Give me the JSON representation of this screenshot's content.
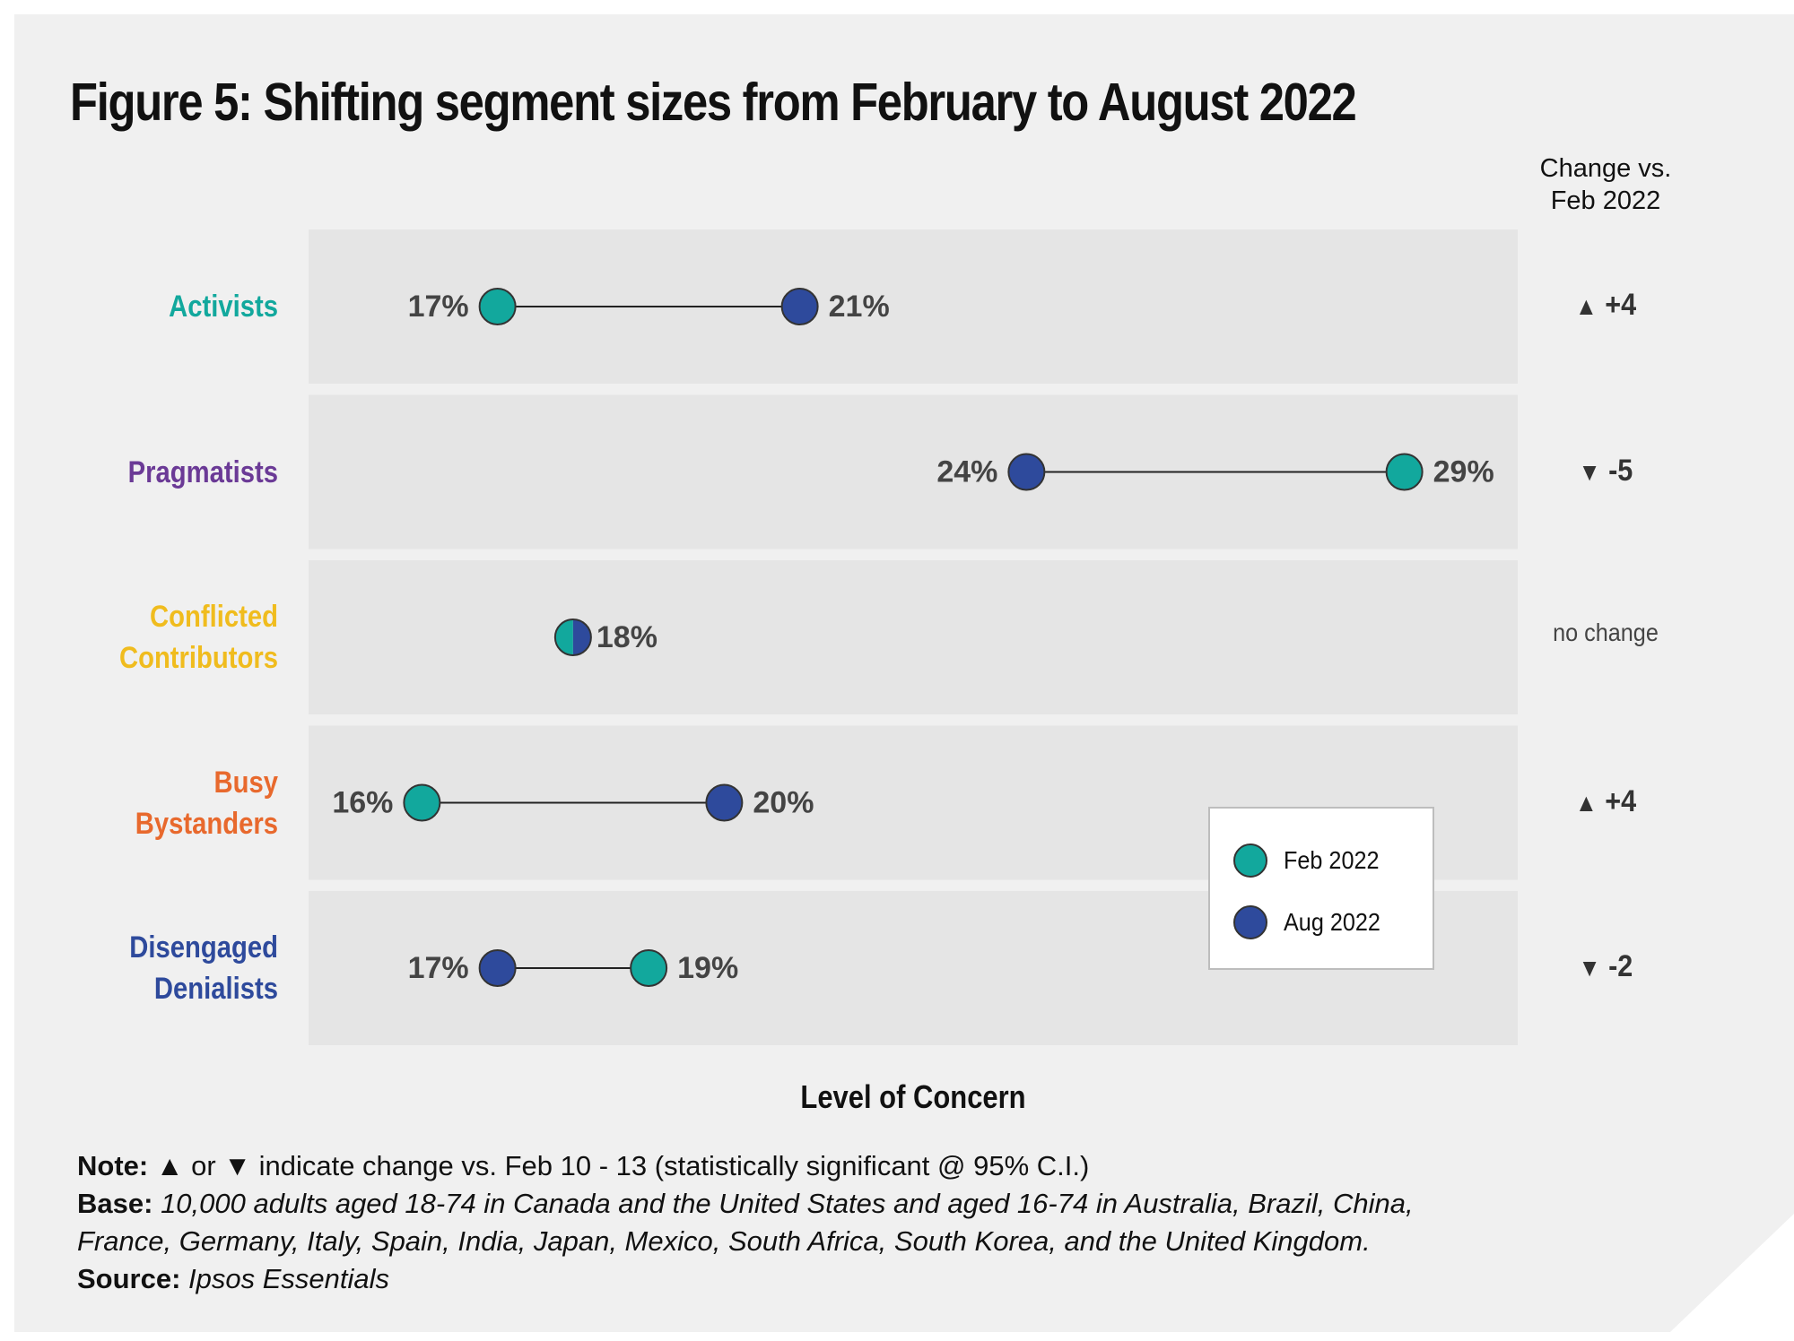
{
  "title": "Figure 5: Shifting segment sizes from February to August 2022",
  "change_header": [
    "Change vs.",
    "Feb 2022"
  ],
  "x_axis_label": "Level of Concern",
  "colors": {
    "feb": "#12a89d",
    "aug": "#2e4a9c",
    "row_bg": "#e5e5e5",
    "card_bg": "#f0f0f0"
  },
  "chart_data": {
    "type": "dumbbell",
    "title": "Figure 5: Shifting segment sizes from February to August 2022",
    "xlabel": "Level of Concern",
    "xlim": [
      14.5,
      30.5
    ],
    "series": [
      {
        "name": "Feb 2022",
        "color": "#12a89d"
      },
      {
        "name": "Aug 2022",
        "color": "#2e4a9c"
      }
    ],
    "rows": [
      {
        "segment_lines": [
          "Activists"
        ],
        "color": "#12a89d",
        "feb": 17,
        "aug": 21,
        "feb_label": "17%",
        "aug_label": "21%",
        "change_arrow": "▲",
        "change_text": "+4"
      },
      {
        "segment_lines": [
          "Pragmatists"
        ],
        "color": "#6b3a96",
        "feb": 29,
        "aug": 24,
        "feb_label": "29%",
        "aug_label": "24%",
        "change_arrow": "▼",
        "change_text": "-5"
      },
      {
        "segment_lines": [
          "Conflicted",
          "Contributors"
        ],
        "color": "#f0bc1e",
        "feb": 18,
        "aug": 18,
        "feb_label": "",
        "aug_label": "18%",
        "change_arrow": "",
        "change_text": "no change"
      },
      {
        "segment_lines": [
          "Busy",
          "Bystanders"
        ],
        "color": "#e8692d",
        "feb": 16,
        "aug": 20,
        "feb_label": "16%",
        "aug_label": "20%",
        "change_arrow": "▲",
        "change_text": "+4"
      },
      {
        "segment_lines": [
          "Disengaged",
          "Denialists"
        ],
        "color": "#2e4a9c",
        "feb": 19,
        "aug": 17,
        "feb_label": "19%",
        "aug_label": "17%",
        "change_arrow": "▼",
        "change_text": "-2"
      }
    ],
    "legend": [
      "Feb 2022",
      "Aug 2022"
    ],
    "legend_position": "lower-right"
  },
  "notes": {
    "note_label": "Note:",
    "note_text": " ▲  or ▼ indicate change vs. Feb 10 - 13 (statistically significant @ 95% C.I.)",
    "base_label": "Base:",
    "base_text_1": "10,000 adults aged 18-74 in Canada and the United States and aged 16-74 in Australia, Brazil, China,",
    "base_text_2": "France, Germany, Italy, Spain, India, Japan, Mexico, South Africa, South Korea, and the United Kingdom.",
    "source_label": "Source:",
    "source_text": "Ipsos Essentials"
  }
}
